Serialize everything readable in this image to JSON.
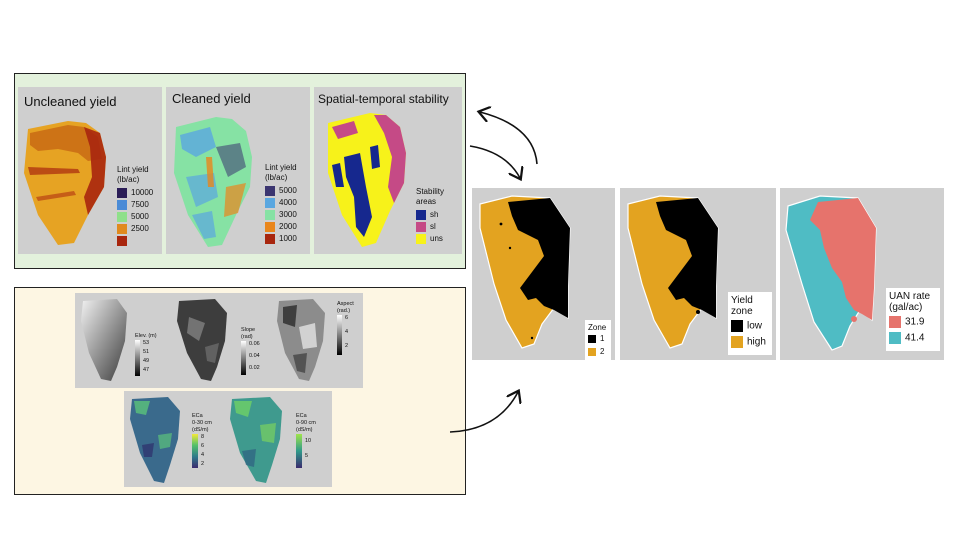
{
  "top_panels": [
    {
      "title": "Uncleaned yield",
      "legend_title": "Lint yield\n(lb/ac)",
      "legend": [
        {
          "label": "10000",
          "color": "#2b1d57"
        },
        {
          "label": "7500",
          "color": "#4a8bd6"
        },
        {
          "label": "5000",
          "color": "#8fe08a"
        },
        {
          "label": "2500",
          "color": "#e08a1e"
        },
        {
          "label": "",
          "color": "#a8260e"
        }
      ]
    },
    {
      "title": "Cleaned yield",
      "legend_title": "Lint yield\n(lb/ac)",
      "legend": [
        {
          "label": "5000",
          "color": "#3b3570"
        },
        {
          "label": "4000",
          "color": "#5aa7e0"
        },
        {
          "label": "3000",
          "color": "#86e2a4"
        },
        {
          "label": "2000",
          "color": "#e9861c"
        },
        {
          "label": "1000",
          "color": "#a8260e"
        }
      ]
    },
    {
      "title": "Spatial-temporal stability",
      "legend_title": "Stability\nareas",
      "legend": [
        {
          "label": "sh",
          "color": "#16288e"
        },
        {
          "label": "sl",
          "color": "#c54a86"
        },
        {
          "label": "uns",
          "color": "#f7f21a"
        }
      ]
    }
  ],
  "terrain_panels": [
    {
      "legend_title": "Elev. (m)",
      "ticks": [
        "53",
        "51",
        "49",
        "47"
      ]
    },
    {
      "legend_title": "Slope\n(rad)",
      "ticks": [
        "0.06",
        "0.04",
        "0.02"
      ]
    },
    {
      "legend_title": "Aspect\n(rad.)",
      "ticks": [
        "6",
        "4",
        "2"
      ]
    }
  ],
  "eca_panels": [
    {
      "legend_title": "ECa\n0-30 cm\n(dS/m)",
      "ticks": [
        "8",
        "6",
        "4",
        "2"
      ]
    },
    {
      "legend_title": "ECa\n0-90 cm\n(dS/m)",
      "ticks": [
        "10",
        "5"
      ]
    }
  ],
  "result_panels": [
    {
      "legend_title": "Zone",
      "legend": [
        {
          "label": "1",
          "color": "#000000"
        },
        {
          "label": "2",
          "color": "#e3a320"
        }
      ]
    },
    {
      "legend_title": "Yield\nzone",
      "legend": [
        {
          "label": "low",
          "color": "#000000"
        },
        {
          "label": "high",
          "color": "#e3a320"
        }
      ]
    },
    {
      "legend_title": "UAN rate\n(gal/ac)",
      "legend": [
        {
          "label": "31.9",
          "color": "#e6736c"
        },
        {
          "label": "41.4",
          "color": "#4fbcc4"
        }
      ]
    }
  ],
  "colors": {
    "zone_low": "#000000",
    "zone_high": "#e3a320",
    "uan_low": "#e6736c",
    "uan_high": "#4fbcc4"
  }
}
